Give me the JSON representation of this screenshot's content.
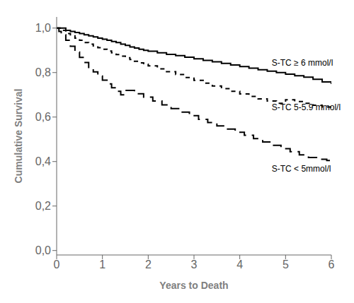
{
  "chart_data": {
    "type": "line",
    "xlabel": "Years to Death",
    "ylabel": "Cumulative Survival",
    "xlim": [
      0,
      6
    ],
    "ylim": [
      -0.02,
      1.05
    ],
    "xticks": [
      0,
      1,
      2,
      3,
      4,
      5,
      6
    ],
    "yticks": [
      {
        "value": 0.0,
        "label": "0,0"
      },
      {
        "value": 0.2,
        "label": "0,2"
      },
      {
        "value": 0.4,
        "label": "0,4"
      },
      {
        "value": 0.6,
        "label": "0,6"
      },
      {
        "value": 0.8,
        "label": "0,8"
      },
      {
        "value": 1.0,
        "label": "1,0"
      }
    ],
    "grid": false,
    "series": [
      {
        "x": [
          0,
          0.1,
          0.2,
          0.3,
          0.4,
          0.5,
          0.6,
          0.7,
          0.8,
          0.9,
          1.0,
          1.1,
          1.2,
          1.3,
          1.4,
          1.5,
          1.6,
          1.7,
          1.8,
          1.9,
          2.0,
          2.2,
          2.4,
          2.6,
          2.8,
          3.0,
          3.2,
          3.4,
          3.6,
          3.8,
          4.0,
          4.2,
          4.4,
          4.6,
          4.8,
          5.0,
          5.2,
          5.4,
          5.6,
          5.8,
          6.0
        ],
        "values": [
          1.0,
          1.0,
          0.99,
          0.985,
          0.98,
          0.975,
          0.97,
          0.965,
          0.96,
          0.955,
          0.95,
          0.945,
          0.94,
          0.935,
          0.928,
          0.922,
          0.915,
          0.91,
          0.905,
          0.9,
          0.896,
          0.889,
          0.882,
          0.876,
          0.869,
          0.862,
          0.855,
          0.848,
          0.841,
          0.834,
          0.827,
          0.82,
          0.813,
          0.806,
          0.8,
          0.793,
          0.786,
          0.779,
          0.77,
          0.758,
          0.748
        ],
        "color": "#000000",
        "line_style": "solid"
      },
      {
        "x": [
          0,
          0.1,
          0.2,
          0.3,
          0.4,
          0.5,
          0.6,
          0.7,
          0.8,
          0.9,
          1.0,
          1.1,
          1.2,
          1.3,
          1.4,
          1.5,
          1.6,
          1.7,
          1.8,
          1.9,
          2.0,
          2.2,
          2.4,
          2.6,
          2.8,
          3.0,
          3.2,
          3.4,
          3.6,
          3.8,
          4.0,
          4.2,
          4.4,
          4.6,
          4.8,
          5.0,
          5.2,
          5.4,
          5.6,
          5.8,
          6.0
        ],
        "values": [
          1.0,
          0.99,
          0.975,
          0.965,
          0.955,
          0.945,
          0.935,
          0.928,
          0.92,
          0.912,
          0.905,
          0.897,
          0.889,
          0.881,
          0.874,
          0.867,
          0.859,
          0.851,
          0.844,
          0.837,
          0.83,
          0.817,
          0.804,
          0.791,
          0.778,
          0.765,
          0.752,
          0.74,
          0.728,
          0.716,
          0.704,
          0.693,
          0.682,
          0.672,
          0.662,
          0.678,
          0.67,
          0.662,
          0.653,
          0.645,
          0.637
        ],
        "color": "#000000",
        "line_style": "dashed"
      },
      {
        "x": [
          0,
          0.05,
          0.1,
          0.2,
          0.3,
          0.4,
          0.5,
          0.6,
          0.7,
          0.8,
          0.9,
          1.0,
          1.1,
          1.2,
          1.3,
          1.4,
          1.5,
          1.7,
          1.9,
          2.1,
          2.3,
          2.5,
          2.7,
          2.9,
          3.1,
          3.3,
          3.5,
          3.7,
          3.9,
          4.1,
          4.3,
          4.5,
          4.7,
          4.9,
          5.1,
          5.3,
          5.5,
          5.7,
          5.9,
          6.0
        ],
        "values": [
          1.0,
          0.985,
          0.97,
          0.945,
          0.918,
          0.892,
          0.868,
          0.845,
          0.823,
          0.803,
          0.784,
          0.766,
          0.749,
          0.732,
          0.716,
          0.7,
          0.72,
          0.705,
          0.69,
          0.672,
          0.655,
          0.638,
          0.622,
          0.606,
          0.59,
          0.575,
          0.56,
          0.546,
          0.532,
          0.518,
          0.503,
          0.488,
          0.473,
          0.458,
          0.444,
          0.43,
          0.418,
          0.41,
          0.405,
          0.402
        ],
        "color": "#000000",
        "line_style": "longdash"
      }
    ],
    "annotations": [
      {
        "x": 4.62,
        "y": 0.845,
        "text": "S-TC ≥ 6 mmol/l"
      },
      {
        "x": 4.62,
        "y": 0.645,
        "text": "S-TC 5-5.9 mmol/l"
      },
      {
        "x": 4.62,
        "y": 0.368,
        "text": "S-TC < 5mmol/l"
      }
    ]
  }
}
